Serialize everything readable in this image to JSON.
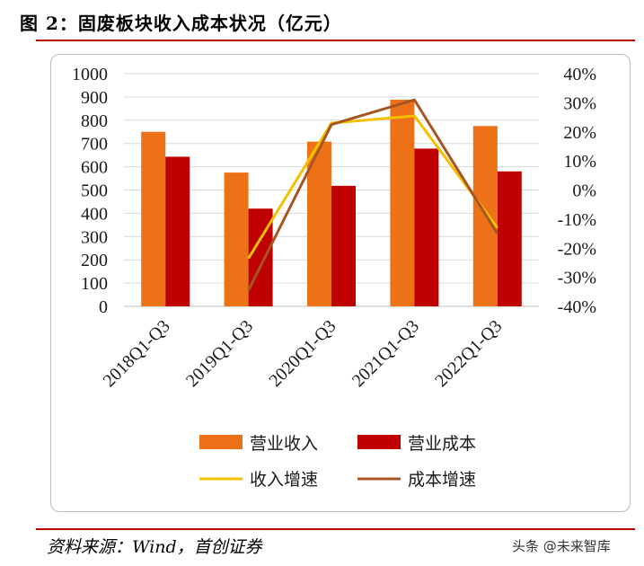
{
  "header": {
    "title": "图 2：固废板块收入成本状况（亿元）"
  },
  "footer": {
    "source": "资料来源：Wind，首创证券",
    "watermark": "头条 @未来智库"
  },
  "colors": {
    "revenue": "#ED7117",
    "cost": "#C00000",
    "revenue_growth": "#F5C000",
    "cost_growth": "#A65522",
    "rule": "#B40000"
  },
  "chart_data": {
    "type": "bar",
    "categories": [
      "2018Q1-Q3",
      "2019Q1-Q3",
      "2020Q1-Q3",
      "2021Q1-Q3",
      "2022Q1-Q3"
    ],
    "series": [
      {
        "name": "营业收入",
        "type": "bar",
        "axis": "left",
        "values": [
          750,
          575,
          708,
          888,
          775
        ]
      },
      {
        "name": "营业成本",
        "type": "bar",
        "axis": "left",
        "values": [
          643,
          420,
          518,
          678,
          580
        ]
      },
      {
        "name": "收入增速",
        "type": "line",
        "axis": "right",
        "values": [
          null,
          -23.5,
          23,
          25.5,
          -13
        ]
      },
      {
        "name": "成本增速",
        "type": "line",
        "axis": "right",
        "values": [
          null,
          -34.5,
          22.5,
          31,
          -15
        ]
      }
    ],
    "y_left": {
      "min": 0,
      "max": 1000,
      "ticks": [
        "0",
        "100",
        "200",
        "300",
        "400",
        "500",
        "600",
        "700",
        "800",
        "900",
        "1000"
      ]
    },
    "y_right": {
      "min": -40,
      "max": 40,
      "ticks": [
        "-40%",
        "-30%",
        "-20%",
        "-10%",
        "0%",
        "10%",
        "20%",
        "30%",
        "40%"
      ]
    },
    "grid": "horizontal",
    "legend_position": "bottom"
  }
}
